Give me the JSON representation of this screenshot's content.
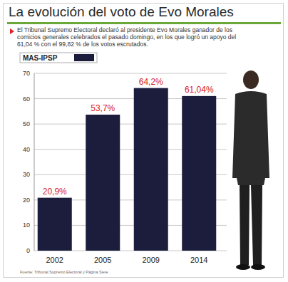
{
  "chart_data": {
    "type": "bar",
    "title": "La evolución del voto de Evo Morales",
    "subtitle": "El Tribunal Supremo Electoral declaró al presidente Evo Morales ganador de los comicios generales celebrados el pasado domingo, en los que logró un apoyo del 61,04 % con el 99,82 % de los votos escrutados.",
    "annotations": [
      "Fuente: Tribunal Supremo Electoral y Página Siete"
    ],
    "categories": [
      "2002",
      "2005",
      "2009",
      "2014"
    ],
    "series": [
      {
        "name": "MAS-IPSP",
        "color": "#1c1d3d",
        "values": [
          20.9,
          53.7,
          64.2,
          61.04
        ],
        "value_labels": [
          "20,9%",
          "53,7%",
          "64,2%",
          "61,04%"
        ]
      }
    ],
    "ylim": [
      0,
      70
    ],
    "yticks": [
      0,
      10,
      20,
      30,
      40,
      50,
      60,
      70
    ],
    "grid": true,
    "legend": "top-left",
    "data_labels": true
  }
}
